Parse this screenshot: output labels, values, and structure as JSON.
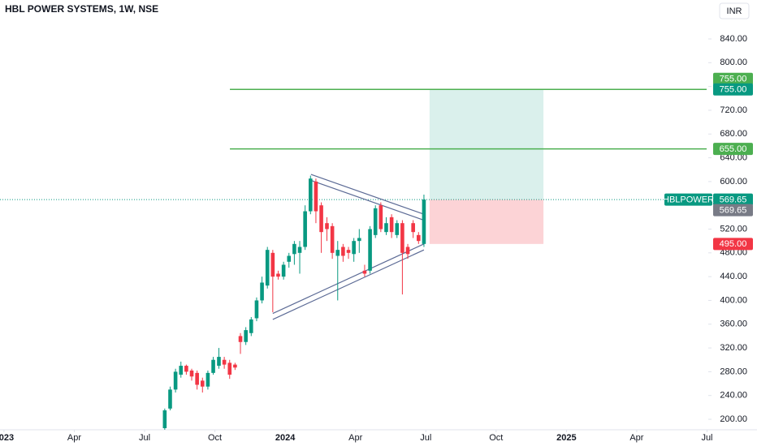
{
  "chart_data": {
    "type": "candlestick",
    "title": "HBL POWER SYSTEMS, 1W, NSE",
    "currency": "INR",
    "up_color": "#089981",
    "down_color": "#f23645",
    "xlim": [
      -0.17,
      30.33
    ],
    "ylim": [
      182.3,
      905.5
    ],
    "xticks": [
      {
        "value": 0,
        "label": "2023"
      },
      {
        "value": 3,
        "label": "Apr"
      },
      {
        "value": 6,
        "label": "Jul"
      },
      {
        "value": 9,
        "label": "Oct"
      },
      {
        "value": 12,
        "label": "2024"
      },
      {
        "value": 15,
        "label": "Apr"
      },
      {
        "value": 18,
        "label": "Jul"
      },
      {
        "value": 21,
        "label": "Oct"
      },
      {
        "value": 24,
        "label": "2025"
      },
      {
        "value": 27,
        "label": "Apr"
      },
      {
        "value": 30,
        "label": "Jul"
      }
    ],
    "yticks": [
      {
        "value": 200,
        "label": "200.00"
      },
      {
        "value": 240,
        "label": "240.00"
      },
      {
        "value": 280,
        "label": "280.00"
      },
      {
        "value": 320,
        "label": "320.00"
      },
      {
        "value": 360,
        "label": "360.00"
      },
      {
        "value": 400,
        "label": "400.00"
      },
      {
        "value": 440,
        "label": "440.00"
      },
      {
        "value": 480,
        "label": "480.00"
      },
      {
        "value": 520,
        "label": "520.00"
      },
      {
        "value": 560,
        "label": "560.00"
      },
      {
        "value": 600,
        "label": "600.00"
      },
      {
        "value": 640,
        "label": "640.00"
      },
      {
        "value": 680,
        "label": "680.00"
      },
      {
        "value": 720,
        "label": "720.00"
      },
      {
        "value": 760,
        "label": "760.00"
      },
      {
        "value": 800,
        "label": "800.00"
      },
      {
        "value": 840,
        "label": "840.00"
      }
    ],
    "series": [
      {
        "name": "HBLPOWER",
        "x": [
          6.86,
          7.09,
          7.32,
          7.55,
          7.78,
          8.01,
          8.24,
          8.47,
          8.7,
          8.93,
          9.17,
          9.4,
          9.63,
          9.86,
          10.09,
          10.32,
          10.55,
          10.78,
          11.01,
          11.24,
          11.47,
          11.7,
          11.93,
          12.16,
          12.39,
          12.62,
          12.85,
          13.08,
          13.31,
          13.54,
          13.78,
          14.01,
          14.24,
          14.47,
          14.7,
          14.93,
          15.16,
          15.39,
          15.62,
          15.85,
          16.08,
          16.31,
          16.54,
          16.77,
          17.0,
          17.23,
          17.46,
          17.69,
          17.92
        ],
        "open": [
          185,
          218,
          250,
          275,
          290,
          282,
          278,
          265,
          255,
          278,
          290,
          300,
          295,
          292,
          340,
          330,
          345,
          370,
          400,
          425,
          480,
          445,
          440,
          465,
          478,
          480,
          490,
          550,
          600,
          560,
          530,
          525,
          475,
          490,
          485,
          478,
          500,
          450,
          450,
          510,
          560,
          515,
          540,
          510,
          530,
          490,
          530,
          510,
          495
        ],
        "high": [
          218,
          255,
          285,
          297,
          292,
          285,
          282,
          270,
          282,
          305,
          320,
          305,
          300,
          295,
          345,
          355,
          372,
          405,
          440,
          490,
          485,
          450,
          465,
          480,
          500,
          500,
          560,
          610,
          605,
          565,
          540,
          530,
          500,
          495,
          490,
          505,
          520,
          460,
          525,
          560,
          565,
          540,
          545,
          535,
          535,
          495,
          535,
          515,
          578
        ],
        "low": [
          180,
          215,
          245,
          270,
          275,
          265,
          250,
          245,
          250,
          275,
          285,
          285,
          268,
          283,
          310,
          325,
          340,
          365,
          395,
          420,
          380,
          435,
          435,
          455,
          460,
          445,
          485,
          545,
          530,
          480,
          500,
          470,
          400,
          465,
          470,
          465,
          480,
          440,
          445,
          505,
          515,
          510,
          505,
          505,
          410,
          470,
          505,
          495,
          490
        ],
        "close": [
          215,
          250,
          280,
          290,
          280,
          272,
          258,
          255,
          278,
          300,
          305,
          292,
          275,
          287,
          330,
          350,
          368,
          400,
          430,
          485,
          440,
          440,
          460,
          475,
          495,
          490,
          550,
          605,
          550,
          515,
          520,
          480,
          485,
          475,
          480,
          500,
          505,
          445,
          520,
          555,
          520,
          530,
          515,
          530,
          480,
          478,
          515,
          500,
          569.65
        ]
      }
    ],
    "last_price": {
      "value": 569.65,
      "label": "569.65"
    },
    "levels": [
      {
        "value": 755,
        "label": "755.00",
        "start": 9.64,
        "color": "#4caf50"
      },
      {
        "value": 655,
        "label": "655.00",
        "start": 9.64,
        "color": "#4caf50"
      }
    ],
    "position": {
      "start": 18.16,
      "end": 23.02,
      "entry": 569.65,
      "entry_label": "569.65",
      "target": 755,
      "target_label": "755.00",
      "stop": 495,
      "stop_label": "495.00"
    },
    "trendlines": [
      {
        "points": [
          [
            13.1,
            612
          ],
          [
            17.92,
            545
          ]
        ]
      },
      {
        "points": [
          [
            13.1,
            602
          ],
          [
            17.92,
            535
          ]
        ]
      },
      {
        "points": [
          [
            11.47,
            378
          ],
          [
            17.92,
            495
          ]
        ]
      },
      {
        "points": [
          [
            11.47,
            368
          ],
          [
            17.92,
            485
          ]
        ]
      }
    ]
  }
}
